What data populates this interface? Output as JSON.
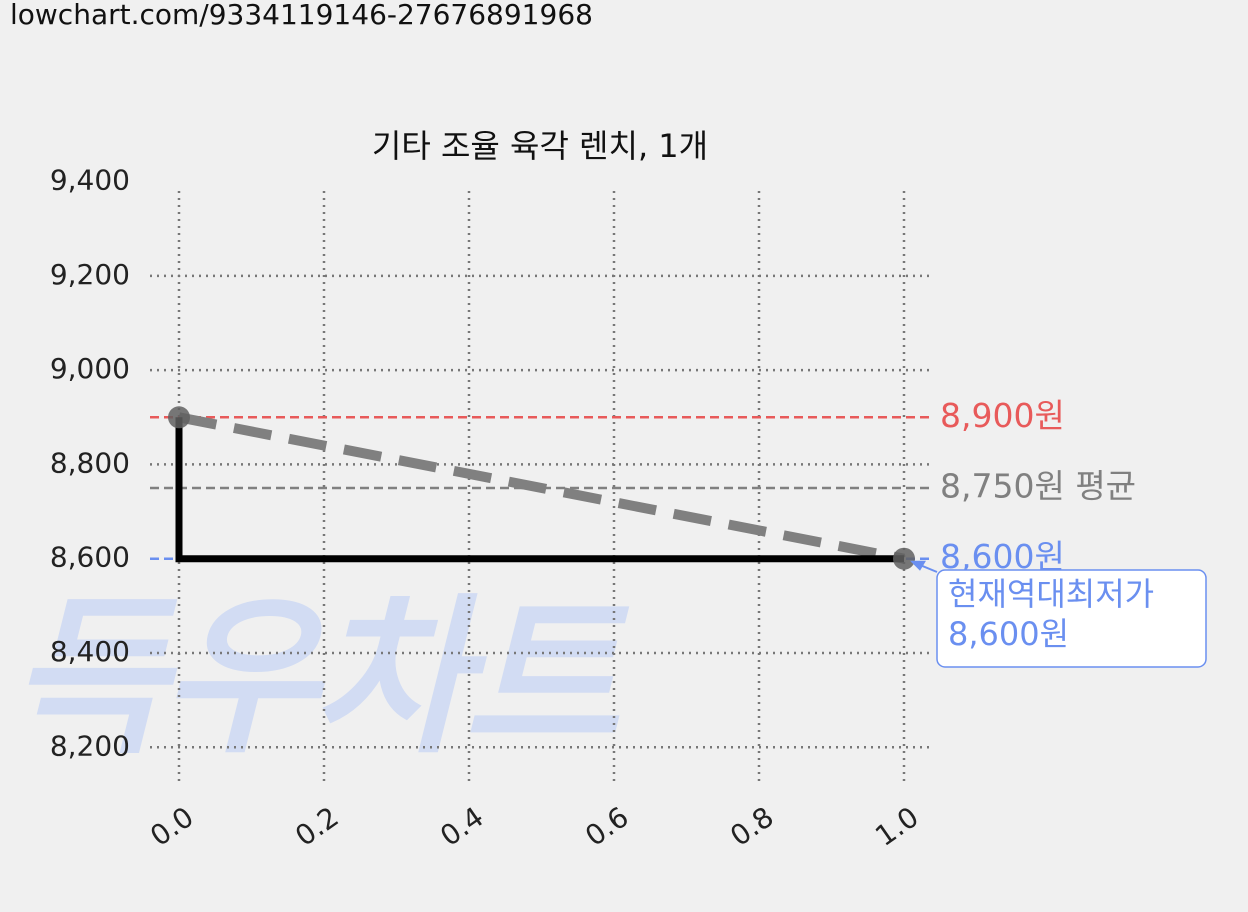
{
  "url": "lowchart.com/9334119146-27676891968",
  "chart_data": {
    "type": "line",
    "title": "기타 조율 육각 렌치, 1개",
    "x": [
      0,
      1
    ],
    "values": [
      8900,
      8600
    ],
    "color": "#000000",
    "step": "post",
    "trend": {
      "values": [
        8900,
        8600
      ],
      "color": "#808080"
    },
    "marker_color": "#606060",
    "xlim": [
      -0.04,
      1.04
    ],
    "ylim": [
      8120,
      9380
    ],
    "xticks": [
      {
        "value": 0,
        "label": "0.0"
      },
      {
        "value": 0.2,
        "label": "0.2"
      },
      {
        "value": 0.4,
        "label": "0.4"
      },
      {
        "value": 0.6,
        "label": "0.6"
      },
      {
        "value": 0.8,
        "label": "0.8"
      },
      {
        "value": 1,
        "label": "1.0"
      }
    ],
    "yticks": [
      {
        "value": 8200,
        "label": "8,200"
      },
      {
        "value": 8400,
        "label": "8,400"
      },
      {
        "value": 8600,
        "label": "8,600"
      },
      {
        "value": 8800,
        "label": "8,800"
      },
      {
        "value": 9000,
        "label": "9,000"
      },
      {
        "value": 9200,
        "label": "9,200"
      },
      {
        "value": 9400,
        "label": "9,400"
      }
    ],
    "grid": true,
    "hlines": [
      {
        "value": 8900,
        "label": "8,900원",
        "color": "#e85a5a"
      },
      {
        "value": 8750,
        "label": "8,750원 평균",
        "color": "#808080"
      },
      {
        "value": 8600,
        "label": "8,600원",
        "color": "#6a8ff0"
      }
    ],
    "annotation": {
      "lines": [
        "현재역대최저가",
        "8,600원"
      ],
      "x": 1,
      "y": 8600,
      "color": "#6a8ff0"
    },
    "watermark": "득우차트"
  }
}
